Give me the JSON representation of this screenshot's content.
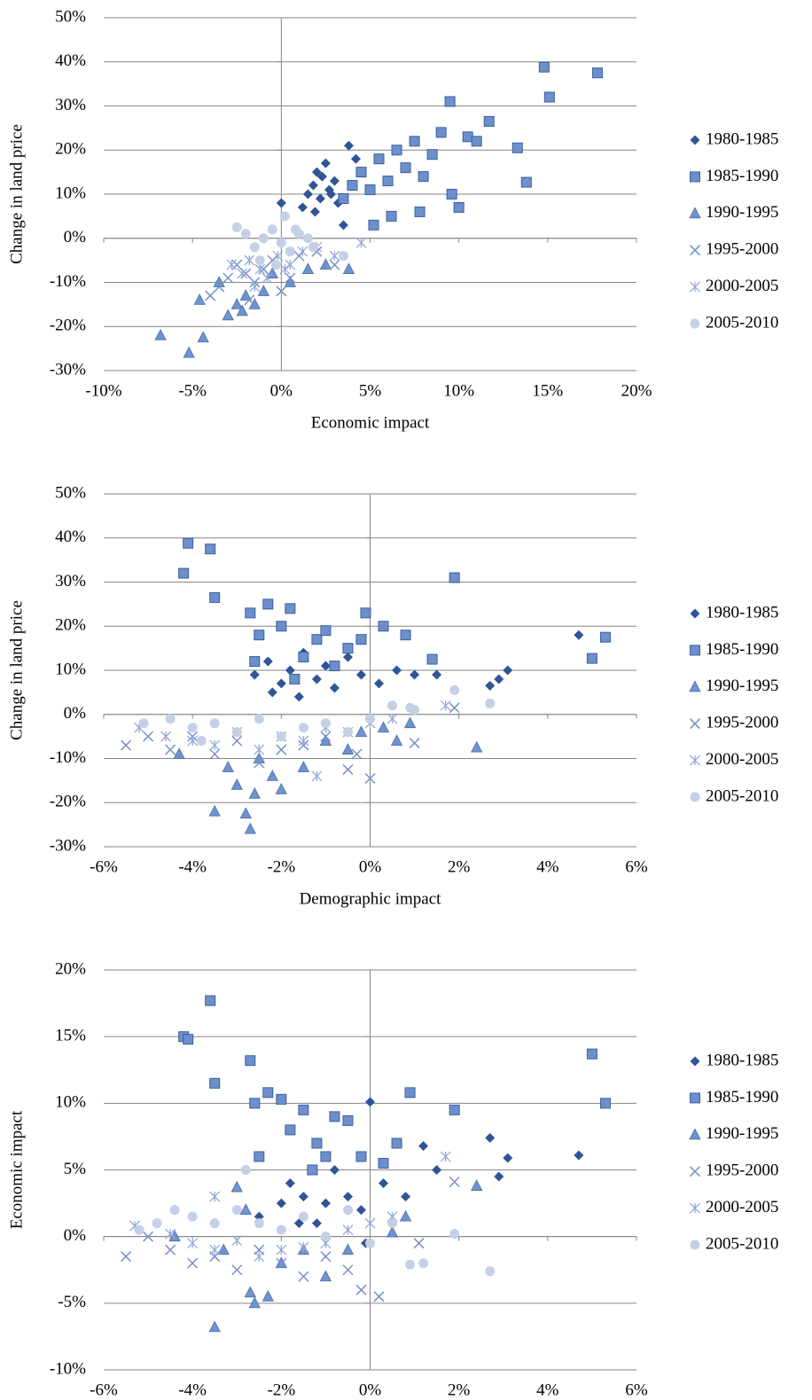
{
  "chart_data": [
    {
      "type": "scatter",
      "xlabel": "Economic impact",
      "ylabel": "Change in land price",
      "xlim": [
        -10,
        20
      ],
      "ylim": [
        -30,
        50
      ],
      "xticks": [
        {
          "value": -10,
          "label": "-10%"
        },
        {
          "value": -5,
          "label": "-5%"
        },
        {
          "value": 0,
          "label": "0%"
        },
        {
          "value": 5,
          "label": "5%"
        },
        {
          "value": 10,
          "label": "10%"
        },
        {
          "value": 15,
          "label": "15%"
        },
        {
          "value": 20,
          "label": "20%"
        }
      ],
      "yticks": [
        {
          "value": -30,
          "label": "-30%"
        },
        {
          "value": -20,
          "label": "-20%"
        },
        {
          "value": -10,
          "label": "-10%"
        },
        {
          "value": 0,
          "label": "0%"
        },
        {
          "value": 10,
          "label": "10%"
        },
        {
          "value": 20,
          "label": "20%"
        },
        {
          "value": 30,
          "label": "30%"
        },
        {
          "value": 40,
          "label": "40%"
        },
        {
          "value": 50,
          "label": "50%"
        }
      ],
      "grid": true,
      "legend": "right",
      "negative_tick_color": "#ff0000",
      "series": [
        {
          "name": "1980-1985",
          "color": "#2f5597",
          "marker": "diamond",
          "x": [
            0,
            1.2,
            1.5,
            1.8,
            2,
            2.2,
            2.5,
            2.7,
            3,
            3.2,
            3.8,
            2.3,
            1.9,
            2.8,
            4.2,
            3.5
          ],
          "values": [
            8,
            7,
            10,
            12,
            15,
            9,
            17,
            11,
            13,
            8,
            21,
            14,
            6,
            10,
            18,
            3
          ]
        },
        {
          "name": "1985-1990",
          "color": "#6d8fcc",
          "marker": "square",
          "x": [
            3.5,
            4,
            4.5,
            5,
            5.5,
            6,
            6.5,
            7,
            7.5,
            8,
            8.5,
            9,
            9.5,
            10,
            10.5,
            11,
            11.7,
            13.3,
            13.8,
            14.8,
            15.1,
            17.8,
            6.2,
            7.8,
            9.6,
            5.2
          ],
          "values": [
            9,
            12,
            15,
            11,
            18,
            13,
            20,
            16,
            22,
            14,
            19,
            24,
            31,
            7,
            23,
            22,
            26.5,
            20.5,
            12.7,
            38.8,
            32,
            37.5,
            5,
            6,
            10,
            3
          ]
        },
        {
          "name": "1990-1995",
          "color": "#6f93cc",
          "marker": "triangle",
          "x": [
            -6.8,
            -5.2,
            -4.4,
            -4.6,
            -3,
            -2.5,
            -2,
            -1.5,
            -1,
            -0.5,
            0.5,
            1.5,
            2.5,
            3.8,
            -3.5,
            -2.2
          ],
          "values": [
            -22,
            -26,
            -22.5,
            -14,
            -17.5,
            -15,
            -13,
            -15,
            -12,
            -8,
            -10,
            -7,
            -6,
            -7,
            -10,
            -16.5
          ]
        },
        {
          "name": "1995-2000",
          "color": "#7890c8",
          "marker": "x",
          "x": [
            -4,
            -3.5,
            -3,
            -2.5,
            -2,
            -1.5,
            -1,
            -0.5,
            0,
            0.5,
            1,
            2,
            3,
            -1.8
          ],
          "values": [
            -13,
            -11,
            -9,
            -6,
            -8,
            -10,
            -7,
            -5,
            -12,
            -9,
            -4,
            -3,
            -6,
            -14
          ]
        },
        {
          "name": "2000-2005",
          "color": "#94a9d8",
          "marker": "asterisk",
          "x": [
            -2.8,
            -2.2,
            -1.8,
            -1.2,
            -0.8,
            -0.2,
            0.5,
            1.2,
            2,
            3,
            -1.5,
            0.2,
            4.5
          ],
          "values": [
            -6,
            -8,
            -5,
            -7,
            -9,
            -4,
            -6,
            -3,
            -2,
            -4,
            -11,
            -7,
            -1
          ]
        },
        {
          "name": "2005-2010",
          "color": "#c5d0e6",
          "marker": "circle",
          "x": [
            -2.5,
            -2,
            -1.5,
            -1,
            -0.5,
            0,
            0.5,
            1,
            1.5,
            -1.2,
            -0.3,
            0.8,
            0.2,
            1.8,
            3.5
          ],
          "values": [
            2.5,
            1,
            -2,
            0,
            2,
            -1,
            -3,
            1,
            0,
            -5,
            -6,
            2,
            5,
            -2,
            -4
          ]
        }
      ]
    },
    {
      "type": "scatter",
      "xlabel": "Demographic impact",
      "ylabel": "Change in land price",
      "xlim": [
        -6,
        6
      ],
      "ylim": [
        -30,
        50
      ],
      "xticks": [
        {
          "value": -6,
          "label": "-6%"
        },
        {
          "value": -4,
          "label": "-4%"
        },
        {
          "value": -2,
          "label": "-2%"
        },
        {
          "value": 0,
          "label": "0%"
        },
        {
          "value": 2,
          "label": "2%"
        },
        {
          "value": 4,
          "label": "4%"
        },
        {
          "value": 6,
          "label": "6%"
        }
      ],
      "yticks": [
        {
          "value": -30,
          "label": "-30%"
        },
        {
          "value": -20,
          "label": "-20%"
        },
        {
          "value": -10,
          "label": "-10%"
        },
        {
          "value": 0,
          "label": "0%"
        },
        {
          "value": 10,
          "label": "10%"
        },
        {
          "value": 20,
          "label": "20%"
        },
        {
          "value": 30,
          "label": "30%"
        },
        {
          "value": 40,
          "label": "40%"
        },
        {
          "value": 50,
          "label": "50%"
        }
      ],
      "grid": true,
      "legend": "right",
      "negative_tick_color": "#ff0000",
      "series": [
        {
          "name": "1980-1985",
          "color": "#2f5597",
          "marker": "diamond",
          "x": [
            -2.6,
            -2.3,
            -2,
            -1.8,
            -1.5,
            -1.2,
            -1,
            -0.8,
            -0.5,
            -0.2,
            0.2,
            0.6,
            1,
            1.5,
            2.7,
            2.9,
            3.1,
            4.7,
            -1.6,
            -2.2
          ],
          "values": [
            9,
            12,
            7,
            10,
            14,
            8,
            11,
            6,
            13,
            9,
            7,
            10,
            9,
            9,
            6.5,
            8,
            10,
            18,
            4,
            5
          ]
        },
        {
          "name": "1985-1990",
          "color": "#6d8fcc",
          "marker": "square",
          "x": [
            -4.2,
            -4.1,
            -3.6,
            -3.5,
            -2.7,
            -2.5,
            -2.3,
            -2,
            -1.8,
            -1.5,
            -1.2,
            -1,
            -0.8,
            -0.5,
            -0.1,
            0.3,
            0.8,
            1.4,
            1.9,
            5,
            5.3,
            -2.6,
            -1.7,
            -0.2
          ],
          "values": [
            32,
            38.8,
            37.5,
            26.5,
            23,
            18,
            25,
            20,
            24,
            13,
            17,
            19,
            11,
            15,
            23,
            20,
            18,
            12.5,
            31,
            12.7,
            17.5,
            12,
            8,
            17
          ]
        },
        {
          "name": "1990-1995",
          "color": "#6f93cc",
          "marker": "triangle",
          "x": [
            -4.3,
            -3.5,
            -3,
            -2.8,
            -2.7,
            -2.6,
            -2.5,
            -2.2,
            -2,
            -1.5,
            -1,
            -0.5,
            -0.2,
            0.3,
            0.6,
            0.9,
            2.4,
            -3.2
          ],
          "values": [
            -9,
            -22,
            -16,
            -22.5,
            -26,
            -18,
            -10,
            -14,
            -17,
            -12,
            -6,
            -8,
            -4,
            -3,
            -6,
            -2,
            -7.5,
            -12
          ]
        },
        {
          "name": "1995-2000",
          "color": "#7890c8",
          "marker": "x",
          "x": [
            -5.5,
            -5,
            -4.5,
            -4,
            -3.5,
            -3,
            -2.5,
            -2,
            -1.5,
            -1,
            -0.5,
            0,
            1,
            1.9,
            -0.3
          ],
          "values": [
            -7,
            -5,
            -8,
            -5,
            -9,
            -6,
            -11,
            -8,
            -7,
            -5,
            -12.5,
            -14.5,
            -6.5,
            1.5,
            -9
          ]
        },
        {
          "name": "2000-2005",
          "color": "#94a9d8",
          "marker": "asterisk",
          "x": [
            -5.2,
            -4.6,
            -4,
            -3.5,
            -3,
            -2.5,
            -2,
            -1.5,
            -1,
            -0.5,
            0,
            0.5,
            1.7,
            -1.2
          ],
          "values": [
            -3,
            -5,
            -6,
            -7,
            -4,
            -8,
            -5,
            -6,
            -3,
            -4,
            -2,
            -1,
            2,
            -14
          ]
        },
        {
          "name": "2005-2010",
          "color": "#c5d0e6",
          "marker": "circle",
          "x": [
            -5.1,
            -4.5,
            -4,
            -3.5,
            -3,
            -2.5,
            -2,
            -1.5,
            -1,
            -0.5,
            0,
            0.5,
            1,
            1.9,
            2.7,
            -3.8,
            0.9
          ],
          "values": [
            -2,
            -1,
            -3,
            -2,
            -4,
            -1,
            -5,
            -3,
            -2,
            -4,
            -1,
            2,
            1,
            5.5,
            2.5,
            -6,
            1.5
          ]
        }
      ]
    },
    {
      "type": "scatter",
      "xlabel": "Demographic impact",
      "ylabel": "Economic impact",
      "xlim": [
        -6,
        6
      ],
      "ylim": [
        -10,
        20
      ],
      "xticks": [
        {
          "value": -6,
          "label": "-6%"
        },
        {
          "value": -4,
          "label": "-4%"
        },
        {
          "value": -2,
          "label": "-2%"
        },
        {
          "value": 0,
          "label": "0%"
        },
        {
          "value": 2,
          "label": "2%"
        },
        {
          "value": 4,
          "label": "4%"
        },
        {
          "value": 6,
          "label": "6%"
        }
      ],
      "yticks": [
        {
          "value": -10,
          "label": "-10%"
        },
        {
          "value": -5,
          "label": "-5%"
        },
        {
          "value": 0,
          "label": "0%"
        },
        {
          "value": 5,
          "label": "5%"
        },
        {
          "value": 10,
          "label": "10%"
        },
        {
          "value": 15,
          "label": "15%"
        },
        {
          "value": 20,
          "label": "20%"
        }
      ],
      "grid": true,
      "legend": "right",
      "negative_tick_color": "#ff0000",
      "series": [
        {
          "name": "1980-1985",
          "color": "#2f5597",
          "marker": "diamond",
          "x": [
            -2.5,
            -2,
            -1.8,
            -1.5,
            -1.2,
            -1,
            -0.8,
            -0.5,
            -0.2,
            0,
            0.3,
            0.8,
            1.2,
            1.5,
            2.7,
            2.9,
            3.1,
            4.7,
            -0.1,
            -1.6
          ],
          "values": [
            1.5,
            2.5,
            4,
            3,
            1,
            2.5,
            5,
            3,
            2,
            10.1,
            4,
            3,
            6.8,
            5,
            7.4,
            4.5,
            5.9,
            6.1,
            -0.5,
            1
          ]
        },
        {
          "name": "1985-1990",
          "color": "#6d8fcc",
          "marker": "square",
          "x": [
            -4.2,
            -4.1,
            -3.6,
            -3.5,
            -2.7,
            -2.6,
            -2.3,
            -2,
            -1.8,
            -1.5,
            -1.2,
            -1,
            -0.8,
            -0.5,
            -0.2,
            0.3,
            0.9,
            1.9,
            5,
            5.3,
            -2.5,
            -1.3,
            0.6
          ],
          "values": [
            15,
            14.8,
            17.7,
            11.5,
            13.2,
            10,
            10.8,
            10.3,
            8,
            9.5,
            7,
            6,
            9,
            8.7,
            6,
            5.5,
            10.8,
            9.5,
            13.7,
            10,
            6,
            5,
            7
          ]
        },
        {
          "name": "1990-1995",
          "color": "#6f93cc",
          "marker": "triangle",
          "x": [
            -4.4,
            -3.5,
            -3,
            -2.7,
            -2.6,
            -2.3,
            -2,
            -1.5,
            -1,
            -0.5,
            0.5,
            0.8,
            2.4,
            -2.8,
            -3.3
          ],
          "values": [
            0,
            -6.8,
            3.7,
            -4.2,
            -5,
            -4.5,
            -2,
            -1,
            -3,
            -1,
            0.3,
            1.5,
            3.8,
            2,
            -1
          ]
        },
        {
          "name": "1995-2000",
          "color": "#7890c8",
          "marker": "x",
          "x": [
            -5.5,
            -5,
            -4.5,
            -4,
            -3.5,
            -3,
            -2.5,
            -2,
            -1.5,
            -1,
            -0.5,
            -0.2,
            0.2,
            1.1,
            1.9
          ],
          "values": [
            -1.5,
            0,
            -1,
            -2,
            -1.5,
            -2.5,
            -1,
            -2,
            -3,
            -1.5,
            -2.5,
            -4,
            -4.5,
            -0.5,
            4.1
          ]
        },
        {
          "name": "2000-2005",
          "color": "#94a9d8",
          "marker": "asterisk",
          "x": [
            -5.3,
            -4.5,
            -4,
            -3.5,
            -3,
            -2.5,
            -2,
            -1.5,
            -1,
            -0.5,
            0,
            0.5,
            1.7,
            -3.5
          ],
          "values": [
            0.8,
            0.2,
            -0.5,
            -1,
            -0.3,
            -1.5,
            -1,
            -0.8,
            -0.5,
            0.5,
            1,
            1.5,
            6,
            3
          ]
        },
        {
          "name": "2005-2010",
          "color": "#c5d0e6",
          "marker": "circle",
          "x": [
            -5.2,
            -4.8,
            -4.4,
            -4,
            -3.5,
            -3,
            -2.8,
            -2.5,
            -2,
            -1.5,
            -1,
            -0.5,
            0,
            0.5,
            0.9,
            1.2,
            1.9,
            2.7
          ],
          "values": [
            0.5,
            1,
            2,
            1.5,
            1,
            2,
            5,
            1,
            0.5,
            1.5,
            0,
            2,
            -0.5,
            1,
            -2.1,
            -2,
            0.2,
            -2.6
          ]
        }
      ]
    }
  ]
}
